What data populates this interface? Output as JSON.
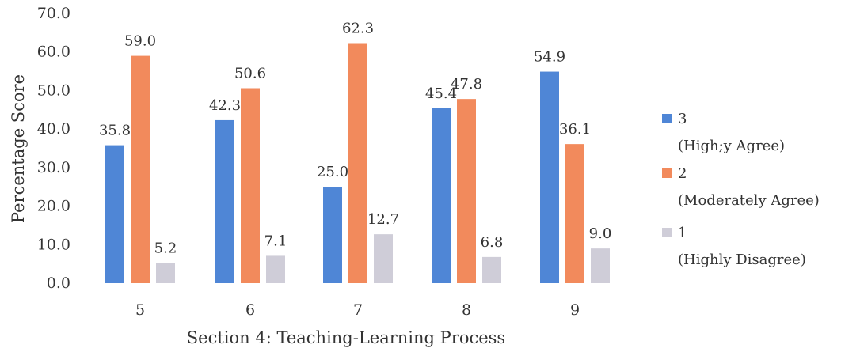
{
  "chart_data": {
    "type": "bar",
    "xlabel": "Section 4: Teaching-Learning Process",
    "ylabel": "Percentage Score",
    "categories": [
      "5",
      "6",
      "7",
      "8",
      "9"
    ],
    "ylim": [
      0,
      70
    ],
    "yticks": [
      "0.0",
      "10.0",
      "20.0",
      "30.0",
      "40.0",
      "50.0",
      "60.0",
      "70.0"
    ],
    "grid": false,
    "legend_position": "right",
    "series": [
      {
        "name": "3",
        "name_sub": "(High;y Agree)",
        "color": "#4f86d6",
        "values": [
          35.8,
          42.3,
          25.0,
          45.4,
          54.9
        ],
        "labels": [
          "35.8",
          "42.3",
          "25.0",
          "45.4",
          "54.9"
        ]
      },
      {
        "name": "2",
        "name_sub": "(Moderately Agree)",
        "color": "#f28a5c",
        "values": [
          59.0,
          50.6,
          62.3,
          47.8,
          36.1
        ],
        "labels": [
          "59.0",
          "50.6",
          "62.3",
          "47.8",
          "36.1"
        ]
      },
      {
        "name": "1",
        "name_sub": "(Highly Disagree)",
        "color": "#cfcdd8",
        "values": [
          5.2,
          7.1,
          12.7,
          6.8,
          9.0
        ],
        "labels": [
          "5.2",
          "7.1",
          "12.7",
          "6.8",
          "9.0"
        ]
      }
    ]
  }
}
